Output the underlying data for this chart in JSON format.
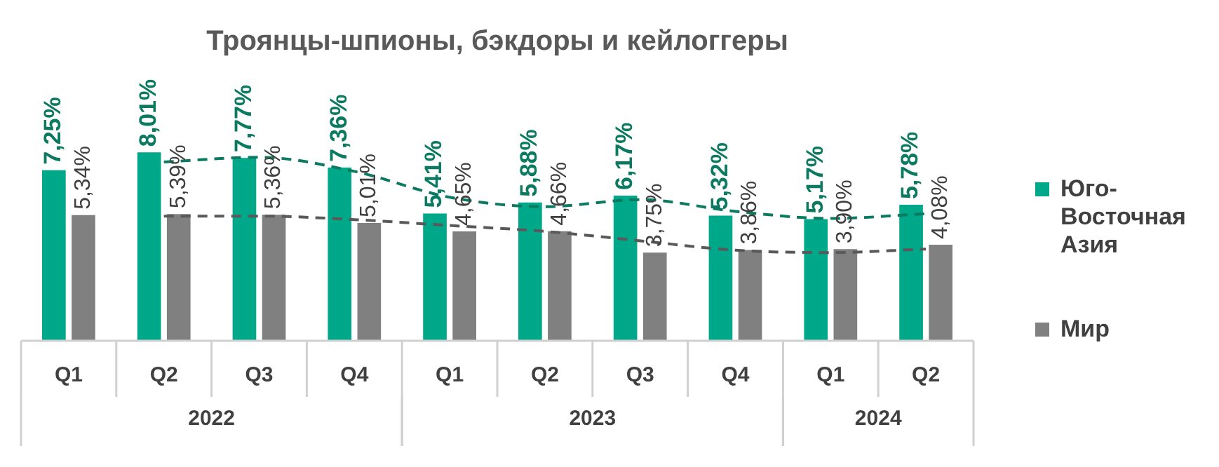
{
  "chart_data": {
    "type": "bar",
    "title": "Троянцы-шпионы, бэкдоры и кейлоггеры",
    "categories": [
      "Q1",
      "Q2",
      "Q3",
      "Q4",
      "Q1",
      "Q2",
      "Q3",
      "Q4",
      "Q1",
      "Q2"
    ],
    "annotations": [
      "2022",
      "2023",
      "2024"
    ],
    "legend": "right",
    "series": [
      {
        "name": "Юго-Восточная Азия",
        "color": "#00a88a",
        "values": [
          7.25,
          8.01,
          7.77,
          7.36,
          5.41,
          5.88,
          6.17,
          5.32,
          5.17,
          5.78
        ],
        "value_labels": [
          "7,25%",
          "8,01%",
          "7,77%",
          "7,36%",
          "5,41%",
          "5,88%",
          "6,17%",
          "5,32%",
          "5,17%",
          "5,78%"
        ]
      },
      {
        "name": "Мир",
        "color": "#808080",
        "values": [
          5.34,
          5.39,
          5.36,
          5.01,
          4.65,
          4.66,
          3.75,
          3.86,
          3.9,
          4.08
        ],
        "value_labels": [
          "5,34%",
          "5,39%",
          "5,36%",
          "5,01%",
          "4,65%",
          "4,66%",
          "3,75%",
          "3,86%",
          "3,90%",
          "4,08%"
        ]
      },
      {
        "type": "line",
        "color": "#0b7a60",
        "line_style": "dashed",
        "marker": "none",
        "values": [
          null,
          7.6,
          7.8,
          7.2,
          6.1,
          5.7,
          6.0,
          5.5,
          5.2,
          5.4
        ]
      },
      {
        "type": "line",
        "color": "#595959",
        "line_style": "dashed",
        "marker": "none",
        "values": [
          null,
          5.3,
          5.3,
          5.15,
          4.9,
          4.65,
          4.25,
          3.85,
          3.75,
          3.9
        ]
      }
    ]
  }
}
